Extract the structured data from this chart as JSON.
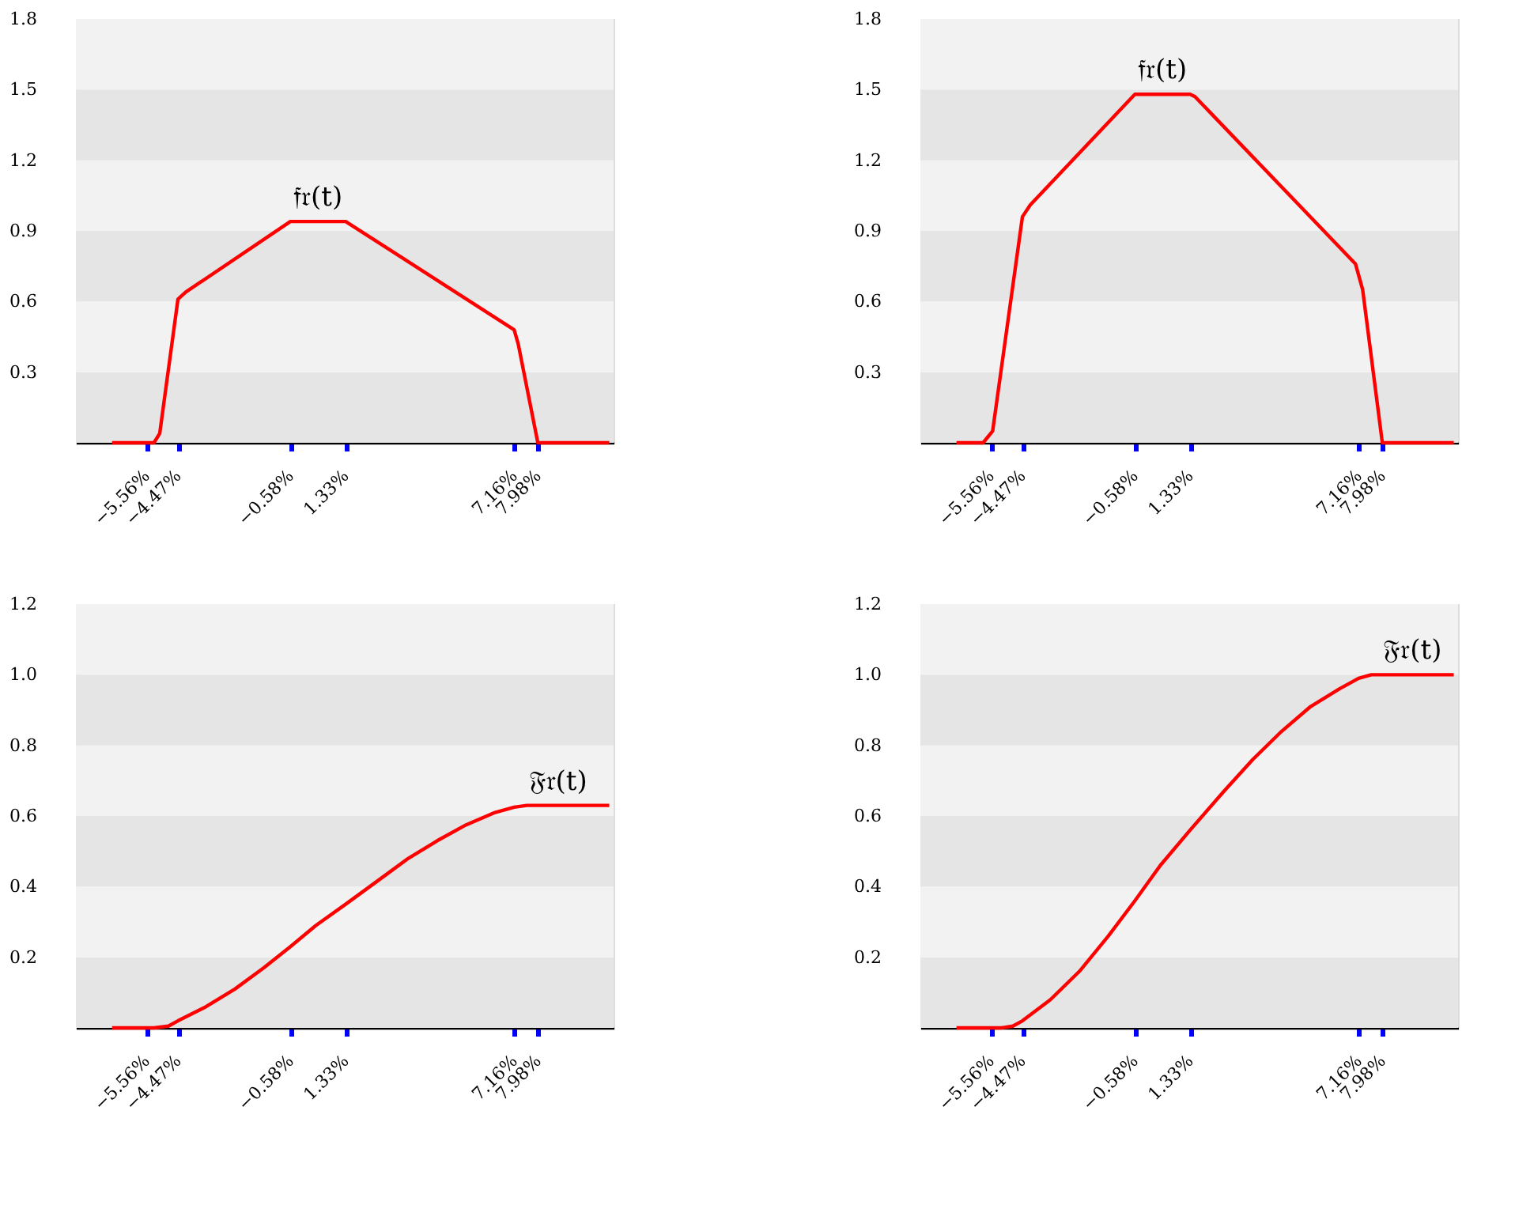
{
  "chart_data": [
    {
      "type": "line",
      "series": [
        {
          "name": "𝔣𝔯(t)",
          "color": "#ff0000",
          "x": [
            -6.75,
            -5.3,
            -5.1,
            -4.47,
            -4.2,
            -0.58,
            1.33,
            7.16,
            7.3,
            7.98,
            10.45
          ],
          "values": [
            0,
            0,
            0.04,
            0.61,
            0.64,
            0.94,
            0.94,
            0.48,
            0.42,
            0,
            0
          ]
        }
      ],
      "xlim": [
        -8,
        10.6
      ],
      "ylim": [
        0,
        1.8
      ],
      "xticks": [
        {
          "value": -5.56,
          "label": "−5.56%"
        },
        {
          "value": -4.47,
          "label": "−4.47%"
        },
        {
          "value": -0.58,
          "label": "−0.58%"
        },
        {
          "value": 1.33,
          "label": "1.33%"
        },
        {
          "value": 7.16,
          "label": "7.16%"
        },
        {
          "value": 7.98,
          "label": "7.98%"
        }
      ],
      "yticks": [
        0.3,
        0.6,
        0.9,
        1.2,
        1.5,
        1.8
      ],
      "bands": [
        {
          "axis": "y",
          "from": 0,
          "to": 0.3,
          "color": "#e5e5e5"
        },
        {
          "axis": "y",
          "from": 0.3,
          "to": 0.6,
          "color": "#f2f2f2"
        },
        {
          "axis": "y",
          "from": 0.6,
          "to": 0.9,
          "color": "#e5e5e5"
        },
        {
          "axis": "y",
          "from": 0.9,
          "to": 1.2,
          "color": "#f2f2f2"
        },
        {
          "axis": "y",
          "from": 1.2,
          "to": 1.5,
          "color": "#e5e5e5"
        },
        {
          "axis": "y",
          "from": 1.5,
          "to": 1.8,
          "color": "#f2f2f2"
        }
      ],
      "grid": false,
      "marker": "none",
      "line_style": "solid"
    },
    {
      "type": "line",
      "series": [
        {
          "name": "𝔣𝔯(t)",
          "color": "#ff0000",
          "x": [
            -6.75,
            -5.83,
            -5.5,
            -4.47,
            -4.2,
            -0.58,
            1.33,
            1.5,
            7.05,
            7.3,
            7.98,
            10.45
          ],
          "values": [
            0,
            0,
            0.05,
            0.96,
            1.01,
            1.48,
            1.48,
            1.47,
            0.76,
            0.65,
            0,
            0
          ]
        }
      ],
      "xlim": [
        -8,
        10.6
      ],
      "ylim": [
        0,
        1.8
      ],
      "xticks": [
        {
          "value": -5.56,
          "label": "−5.56%"
        },
        {
          "value": -4.47,
          "label": "−4.47%"
        },
        {
          "value": -0.58,
          "label": "−0.58%"
        },
        {
          "value": 1.33,
          "label": "1.33%"
        },
        {
          "value": 7.16,
          "label": "7.16%"
        },
        {
          "value": 7.98,
          "label": "7.98%"
        }
      ],
      "yticks": [
        0.3,
        0.6,
        0.9,
        1.2,
        1.5,
        1.8
      ],
      "bands": [
        {
          "axis": "y",
          "from": 0,
          "to": 0.3,
          "color": "#e5e5e5"
        },
        {
          "axis": "y",
          "from": 0.3,
          "to": 0.6,
          "color": "#f2f2f2"
        },
        {
          "axis": "y",
          "from": 0.6,
          "to": 0.9,
          "color": "#e5e5e5"
        },
        {
          "axis": "y",
          "from": 0.9,
          "to": 1.2,
          "color": "#f2f2f2"
        },
        {
          "axis": "y",
          "from": 1.2,
          "to": 1.5,
          "color": "#e5e5e5"
        },
        {
          "axis": "y",
          "from": 1.5,
          "to": 1.8,
          "color": "#f2f2f2"
        }
      ],
      "grid": false,
      "marker": "none",
      "line_style": "solid"
    },
    {
      "type": "line",
      "series": [
        {
          "name": "𝔉𝔯(t)",
          "color": "#ff0000",
          "x": [
            -6.75,
            -5.3,
            -4.8,
            -4.47,
            -3.5,
            -2.5,
            -1.5,
            -0.58,
            0.3,
            1.33,
            2.5,
            3.5,
            4.5,
            5.5,
            6.5,
            7.16,
            7.6,
            7.98,
            10.45
          ],
          "values": [
            0,
            0,
            0.005,
            0.02,
            0.06,
            0.11,
            0.17,
            0.23,
            0.29,
            0.35,
            0.42,
            0.48,
            0.53,
            0.575,
            0.61,
            0.625,
            0.63,
            0.63,
            0.63
          ]
        }
      ],
      "xlim": [
        -8,
        10.6
      ],
      "ylim": [
        0,
        1.2
      ],
      "xticks": [
        {
          "value": -5.56,
          "label": "−5.56%"
        },
        {
          "value": -4.47,
          "label": "−4.47%"
        },
        {
          "value": -0.58,
          "label": "−0.58%"
        },
        {
          "value": 1.33,
          "label": "1.33%"
        },
        {
          "value": 7.16,
          "label": "7.16%"
        },
        {
          "value": 7.98,
          "label": "7.98%"
        }
      ],
      "yticks": [
        0.2,
        0.4,
        0.6,
        0.8,
        {
          "value": 1,
          "label": "1.0"
        },
        1.2
      ],
      "bands": [
        {
          "axis": "y",
          "from": 0,
          "to": 0.2,
          "color": "#e5e5e5"
        },
        {
          "axis": "y",
          "from": 0.2,
          "to": 0.4,
          "color": "#f2f2f2"
        },
        {
          "axis": "y",
          "from": 0.4,
          "to": 0.6,
          "color": "#e5e5e5"
        },
        {
          "axis": "y",
          "from": 0.6,
          "to": 0.8,
          "color": "#f2f2f2"
        },
        {
          "axis": "y",
          "from": 0.8,
          "to": 1.0,
          "color": "#e5e5e5"
        },
        {
          "axis": "y",
          "from": 1.0,
          "to": 1.2,
          "color": "#f2f2f2"
        }
      ],
      "grid": false,
      "marker": "none",
      "line_style": "solid"
    },
    {
      "type": "line",
      "series": [
        {
          "name": "𝔉𝔯(t)",
          "color": "#ff0000",
          "x": [
            -6.75,
            -5.2,
            -4.8,
            -4.47,
            -3.5,
            -2.5,
            -1.5,
            -0.58,
            0.3,
            1.33,
            2.5,
            3.5,
            4.5,
            5.5,
            6.5,
            7.16,
            7.6,
            10.45
          ],
          "values": [
            0,
            0,
            0.005,
            0.02,
            0.08,
            0.16,
            0.26,
            0.36,
            0.46,
            0.56,
            0.67,
            0.76,
            0.84,
            0.91,
            0.96,
            0.99,
            1.0,
            1.0
          ]
        }
      ],
      "xlim": [
        -8,
        10.6
      ],
      "ylim": [
        0,
        1.2
      ],
      "xticks": [
        {
          "value": -5.56,
          "label": "−5.56%"
        },
        {
          "value": -4.47,
          "label": "−4.47%"
        },
        {
          "value": -0.58,
          "label": "−0.58%"
        },
        {
          "value": 1.33,
          "label": "1.33%"
        },
        {
          "value": 7.16,
          "label": "7.16%"
        },
        {
          "value": 7.98,
          "label": "7.98%"
        }
      ],
      "yticks": [
        0.2,
        0.4,
        0.6,
        0.8,
        {
          "value": 1,
          "label": "1.0"
        },
        1.2
      ],
      "bands": [
        {
          "axis": "y",
          "from": 0,
          "to": 0.2,
          "color": "#e5e5e5"
        },
        {
          "axis": "y",
          "from": 0.2,
          "to": 0.4,
          "color": "#f2f2f2"
        },
        {
          "axis": "y",
          "from": 0.4,
          "to": 0.6,
          "color": "#e5e5e5"
        },
        {
          "axis": "y",
          "from": 0.6,
          "to": 0.8,
          "color": "#f2f2f2"
        },
        {
          "axis": "y",
          "from": 0.8,
          "to": 1.0,
          "color": "#e5e5e5"
        },
        {
          "axis": "y",
          "from": 1.0,
          "to": 1.2,
          "color": "#f2f2f2"
        }
      ],
      "grid": false,
      "marker": "none",
      "line_style": "solid"
    }
  ]
}
